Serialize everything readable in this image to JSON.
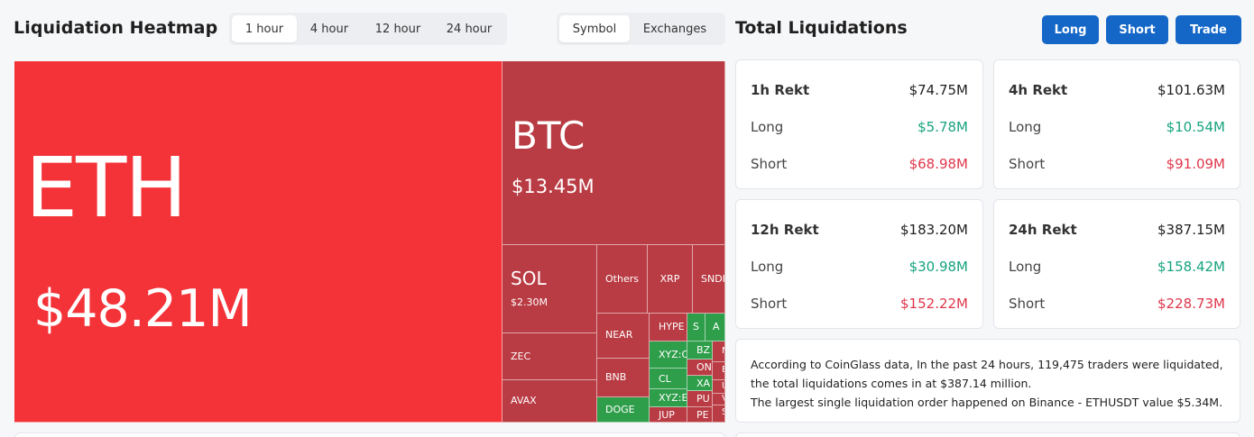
{
  "heatmap": {
    "title": "Liquidation Heatmap",
    "time_tabs": [
      {
        "label": "1 hour",
        "active": true
      },
      {
        "label": "4 hour",
        "active": false
      },
      {
        "label": "12 hour",
        "active": false
      },
      {
        "label": "24 hour",
        "active": false
      }
    ],
    "mode_tabs": [
      {
        "label": "Symbol",
        "active": true
      },
      {
        "label": "Exchanges",
        "active": false
      }
    ],
    "tiles": {
      "eth": {
        "symbol": "ETH",
        "value": "$48.21M"
      },
      "btc": {
        "symbol": "BTC",
        "value": "$13.45M"
      },
      "sol": {
        "symbol": "SOL",
        "value": "$2.30M"
      },
      "others": "Others",
      "xrp": "XRP",
      "sndk": "SNDK",
      "zec": "ZEC",
      "avax": "AVAX",
      "near": "NEAR",
      "bnb": "BNB",
      "doge": "DOGE",
      "hype": "HYPE",
      "xyz1": "XYZ:C",
      "cl": "CL",
      "xyz2": "XYZ:E",
      "jup": "JUP",
      "s": "S",
      "a": "A",
      "bz": "BZ",
      "on": "ON",
      "xa": "XA",
      "pu": "PU",
      "pe": "PE",
      "m": "M",
      "e": "E",
      "u": "U",
      "v": "V",
      "s2": "S"
    }
  },
  "totals": {
    "title": "Total Liquidations",
    "buttons": {
      "long": "Long",
      "short": "Short",
      "trade": "Trade"
    },
    "cards": [
      {
        "label": "1h Rekt",
        "total": "$74.75M",
        "long_label": "Long",
        "long": "$5.78M",
        "short_label": "Short",
        "short": "$68.98M"
      },
      {
        "label": "4h Rekt",
        "total": "$101.63M",
        "long_label": "Long",
        "long": "$10.54M",
        "short_label": "Short",
        "short": "$91.09M"
      },
      {
        "label": "12h Rekt",
        "total": "$183.20M",
        "long_label": "Long",
        "long": "$30.98M",
        "short_label": "Short",
        "short": "$152.22M"
      },
      {
        "label": "24h Rekt",
        "total": "$387.15M",
        "long_label": "Long",
        "long": "$158.42M",
        "short_label": "Short",
        "short": "$228.73M"
      }
    ],
    "summary_line1": "According to CoinGlass data, In the past 24 hours, 119,475 traders were liquidated, the total liquidations comes in at $387.14 million.",
    "summary_line2": "The largest single liquidation order happened on Binance - ETHUSDT value $5.34M."
  },
  "colors": {
    "accent": "#1567c7",
    "eth_tile": "#f43339",
    "red_tile": "#b93b43",
    "green_tile": "#2f9e4a",
    "positive": "#16a37f",
    "negative": "#e0374b"
  }
}
